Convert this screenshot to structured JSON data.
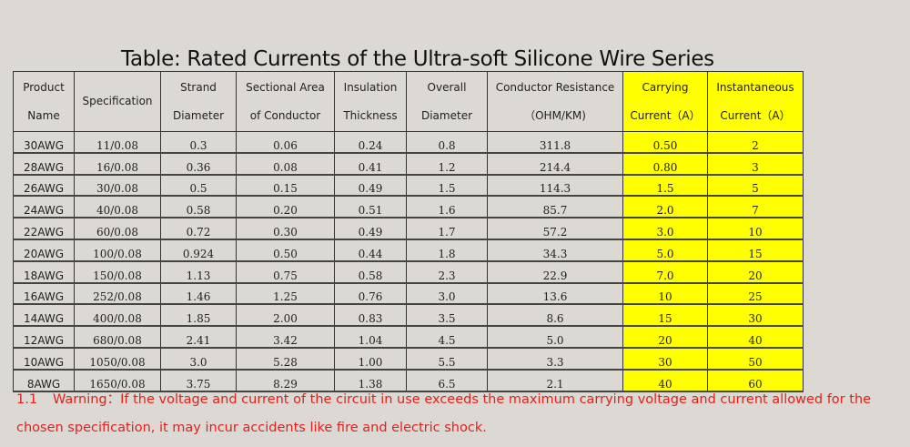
{
  "title": "Table: Rated Currents of the Ultra-soft Silicone Wire Series",
  "headers": [
    [
      "Product",
      "Name"
    ],
    [
      "Specification"
    ],
    [
      "Strand",
      "Diameter"
    ],
    [
      "Sectional Area",
      "of Conductor"
    ],
    [
      "Insulation",
      "Thickness"
    ],
    [
      "Overall",
      "Diameter"
    ],
    [
      "Conductor Resistance",
      "（OHM/KM)"
    ],
    [
      "Carrying",
      "Current（A）"
    ],
    [
      "Instantaneous",
      "Current（A）"
    ]
  ],
  "highlight_color": "#ffff00",
  "rows": [
    [
      "30AWG",
      "11/0.08",
      "0.3",
      "0.06",
      "0.24",
      "0.8",
      "311.8",
      "0.50",
      "2"
    ],
    [
      "28AWG",
      "16/0.08",
      "0.36",
      "0.08",
      "0.41",
      "1.2",
      "214.4",
      "0.80",
      "3"
    ],
    [
      "26AWG",
      "30/0.08",
      "0.5",
      "0.15",
      "0.49",
      "1.5",
      "114.3",
      "1.5",
      "5"
    ],
    [
      "24AWG",
      "40/0.08",
      "0.58",
      "0.20",
      "0.51",
      "1.6",
      "85.7",
      "2.0",
      "7"
    ],
    [
      "22AWG",
      "60/0.08",
      "0.72",
      "0.30",
      "0.49",
      "1.7",
      "57.2",
      "3.0",
      "10"
    ],
    [
      "20AWG",
      "100/0.08",
      "0.924",
      "0.50",
      "0.44",
      "1.8",
      "34.3",
      "5.0",
      "15"
    ],
    [
      "18AWG",
      "150/0.08",
      "1.13",
      "0.75",
      "0.58",
      "2.3",
      "22.9",
      "7.0",
      "20"
    ],
    [
      "16AWG",
      "252/0.08",
      "1.46",
      "1.25",
      "0.76",
      "3.0",
      "13.6",
      "10",
      "25"
    ],
    [
      "14AWG",
      "400/0.08",
      "1.85",
      "2.00",
      "0.83",
      "3.5",
      "8.6",
      "15",
      "30"
    ],
    [
      "12AWG",
      "680/0.08",
      "2.41",
      "3.42",
      "1.04",
      "4.5",
      "5.0",
      "20",
      "40"
    ],
    [
      "10AWG",
      "1050/0.08",
      "3.0",
      "5.28",
      "1.00",
      "5.5",
      "3.3",
      "30",
      "50"
    ],
    [
      "8AWG",
      "1650/0.08",
      "3.75",
      "8.29",
      "1.38",
      "6.5",
      "2.1",
      "40",
      "60"
    ]
  ],
  "warning": {
    "number": "1.1",
    "text": "Warning：If the voltage and current of the circuit in use exceeds the maximum carrying voltage and current allowed for the chosen specification, it may incur accidents like fire and electric shock."
  }
}
